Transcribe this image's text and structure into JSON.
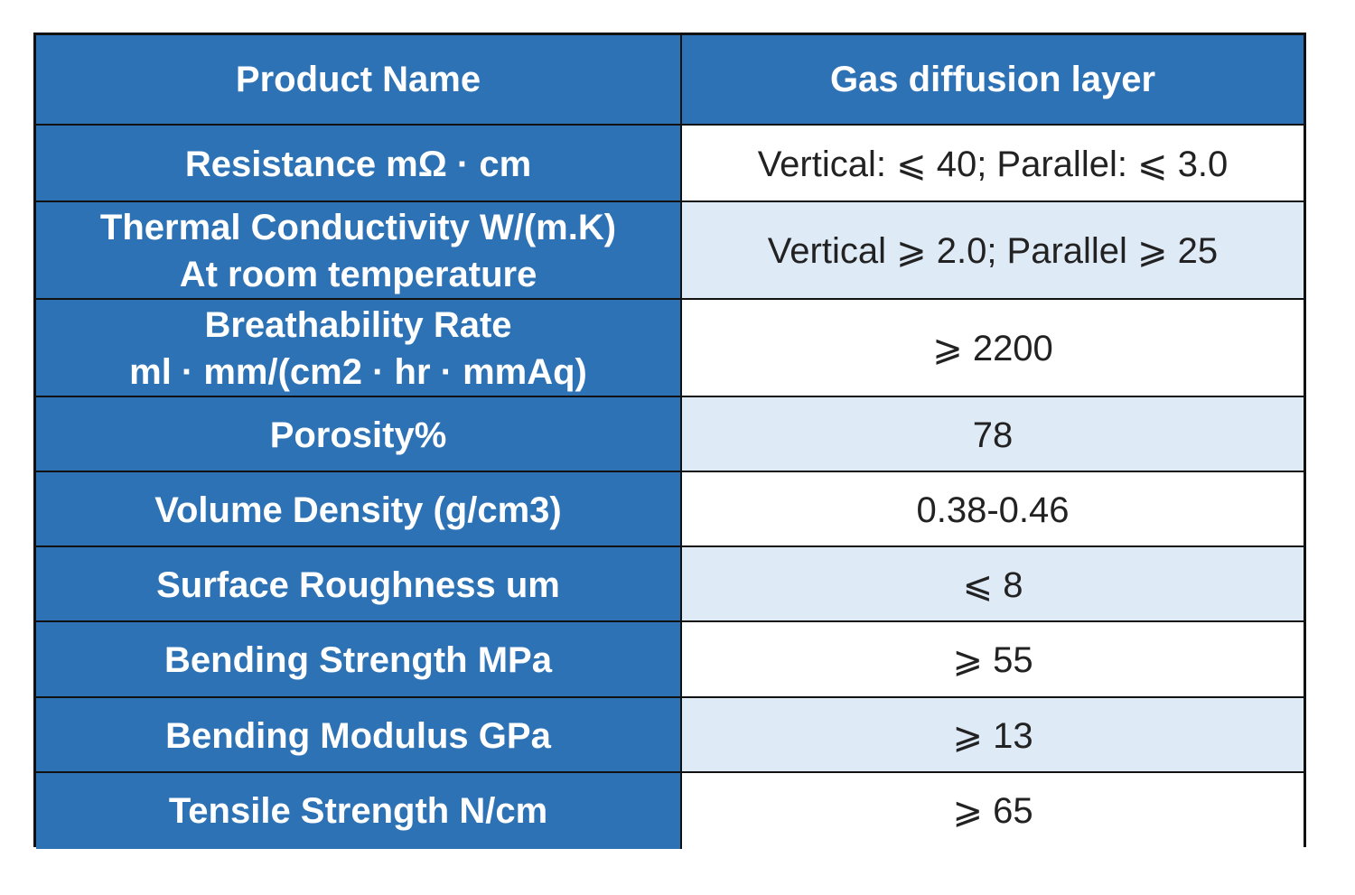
{
  "table": {
    "header": [
      "Product Name",
      "Gas diffusion layer"
    ],
    "rows": [
      {
        "label": [
          "Resistance mΩ · cm"
        ],
        "value": "Vertical: ⩽ 40; Parallel: ⩽ 3.0"
      },
      {
        "label": [
          "Thermal Conductivity W/(m.K)",
          "At room temperature"
        ],
        "value": "Vertical ⩾ 2.0; Parallel ⩾ 25"
      },
      {
        "label": [
          "Breathability Rate",
          "ml · mm/(cm2 · hr · mmAq)"
        ],
        "value": "⩾ 2200"
      },
      {
        "label": [
          "Porosity%"
        ],
        "value": "78"
      },
      {
        "label": [
          "Volume Density (g/cm3)"
        ],
        "value": "0.38-0.46"
      },
      {
        "label": [
          "Surface Roughness um"
        ],
        "value": "⩽ 8"
      },
      {
        "label": [
          "Bending Strength MPa"
        ],
        "value": "⩾ 55"
      },
      {
        "label": [
          "Bending Modulus GPa"
        ],
        "value": "⩾ 13"
      },
      {
        "label": [
          "Tensile Strength N/cm"
        ],
        "value": "⩾ 65"
      }
    ]
  }
}
